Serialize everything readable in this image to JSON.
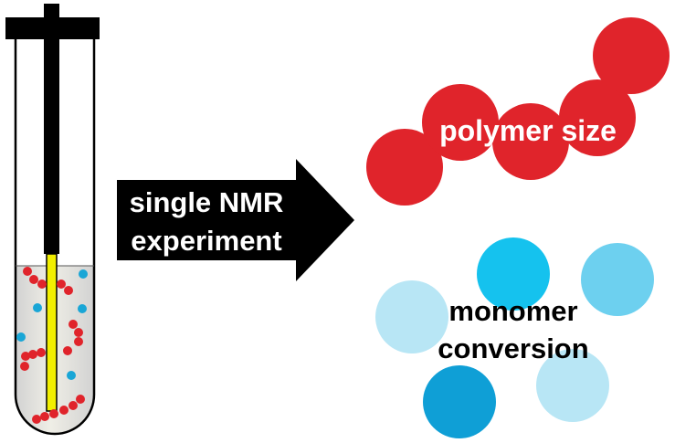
{
  "labels": {
    "arrow_line1": "single NMR",
    "arrow_line2": "experiment",
    "polymer": "polymer size",
    "monomer_line1": "monomer",
    "monomer_line2": "conversion"
  },
  "colors": {
    "red": "#e0242b",
    "blue": "#19a6d6",
    "light_blue": "#b8e6f5",
    "mid_blue": "#6dd0ef",
    "cyan": "#15c2ee",
    "deep_blue": "#0f9fd6",
    "insert": "#f2ef00",
    "black": "#000000"
  }
}
